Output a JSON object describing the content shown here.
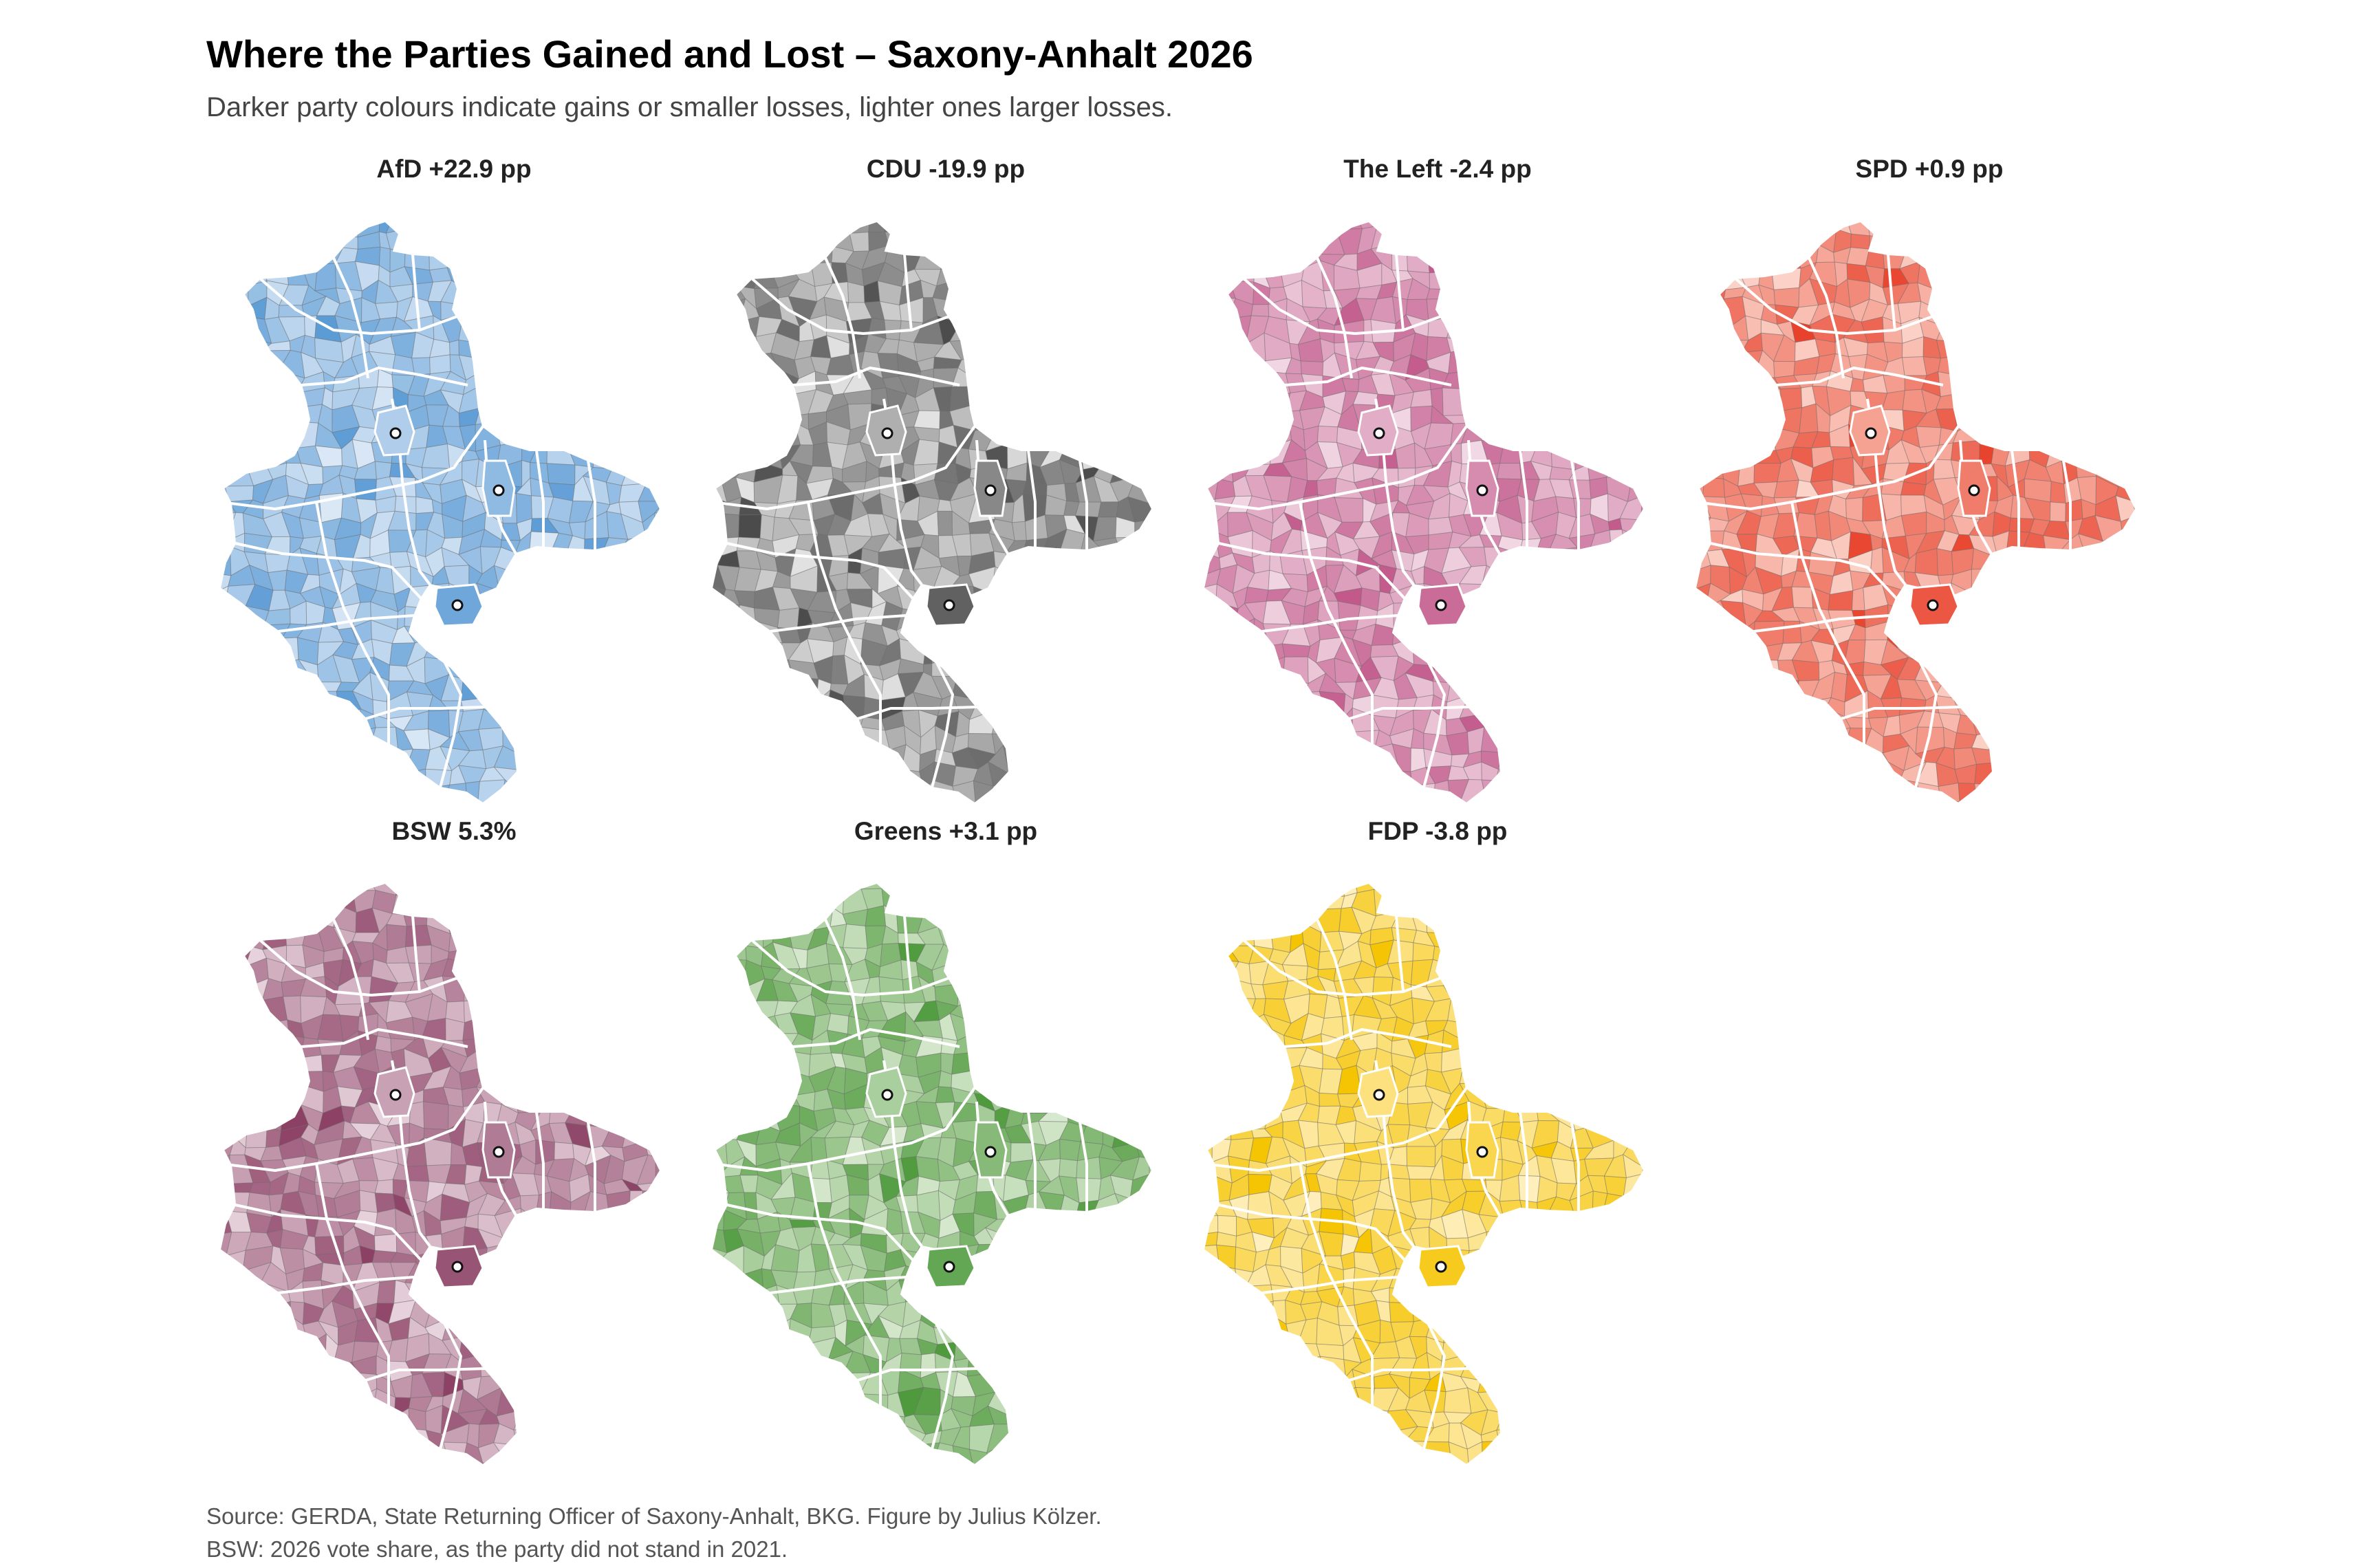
{
  "title": "Where the Parties Gained and Lost – Saxony-Anhalt 2026",
  "subtitle": "Darker party colours indicate gains or smaller losses, lighter ones larger losses.",
  "panels": [
    {
      "party": "AfD",
      "value": "+22.9 pp",
      "label": "AfD  +22.9 pp",
      "color": "#5b9bd5",
      "light": "#deeaf7"
    },
    {
      "party": "CDU",
      "value": "-19.9 pp",
      "label": "CDU  -19.9 pp",
      "color": "#4a4a4a",
      "light": "#e6e6e6"
    },
    {
      "party": "The Left",
      "value": "-2.4 pp",
      "label": "The Left  -2.4 pp",
      "color": "#c2588a",
      "light": "#f3dbe6"
    },
    {
      "party": "SPD",
      "value": "+0.9 pp",
      "label": "SPD  +0.9 pp",
      "color": "#e8402a",
      "light": "#fcd6cc"
    },
    {
      "party": "BSW",
      "value": "5.3%",
      "label": "BSW  5.3%",
      "color": "#8a3d62",
      "light": "#ead7e0"
    },
    {
      "party": "Greens",
      "value": "+3.1 pp",
      "label": "Greens  +3.1 pp",
      "color": "#4e9a3c",
      "light": "#dcebd3"
    },
    {
      "party": "FDP",
      "value": "-3.8 pp",
      "label": "FDP  -3.8 pp",
      "color": "#f5c400",
      "light": "#fff0c2"
    }
  ],
  "caption": {
    "line1": "Source: GERDA, State Returning Officer of Saxony-Anhalt, BKG. Figure by Julius Kölzer.",
    "line2": "BSW: 2026 vote share, as the party did not stand in 2021."
  }
}
